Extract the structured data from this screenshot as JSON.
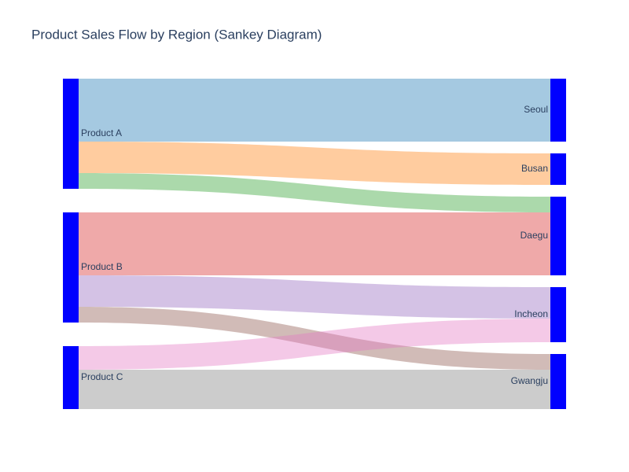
{
  "chart_data": {
    "type": "sankey",
    "title": "Product Sales Flow by Region (Sankey Diagram)",
    "nodes": [
      {
        "label": "Product A",
        "color": "#0000ff"
      },
      {
        "label": "Product B",
        "color": "#0000ff"
      },
      {
        "label": "Product C",
        "color": "#0000ff"
      },
      {
        "label": "Seoul",
        "color": "#0000ff"
      },
      {
        "label": "Busan",
        "color": "#0000ff"
      },
      {
        "label": "Daegu",
        "color": "#0000ff"
      },
      {
        "label": "Incheon",
        "color": "#0000ff"
      },
      {
        "label": "Gwangju",
        "color": "#0000ff"
      }
    ],
    "links": {
      "source": [
        0,
        0,
        0,
        1,
        1,
        1,
        2,
        2
      ],
      "target": [
        3,
        4,
        5,
        5,
        6,
        7,
        6,
        7
      ],
      "values": [
        80,
        40,
        20,
        80,
        40,
        20,
        30,
        50
      ],
      "colors": [
        "rgba(31,119,180,0.4)",
        "rgba(255,127,14,0.4)",
        "rgba(44,160,44,0.4)",
        "rgba(214,39,40,0.4)",
        "rgba(148,103,189,0.4)",
        "rgba(140,86,75,0.4)",
        "rgba(227,119,194,0.4)",
        "rgba(127,127,127,0.4)"
      ]
    }
  }
}
